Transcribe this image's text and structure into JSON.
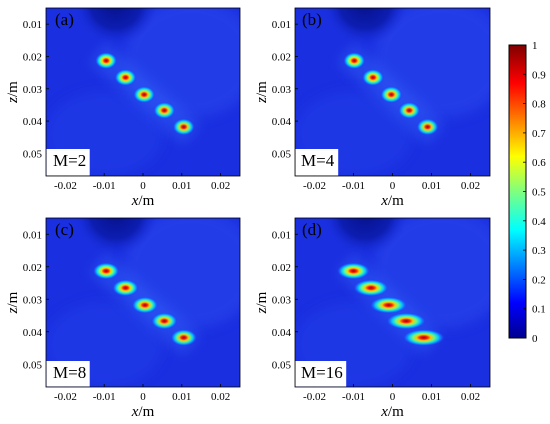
{
  "figure": {
    "colorbar": {
      "min": 0,
      "max": 1,
      "ticks": [
        "0",
        "0.1",
        "0.2",
        "0.3",
        "0.4",
        "0.5",
        "0.6",
        "0.7",
        "0.8",
        "0.9",
        "1"
      ],
      "colormap": "jet"
    },
    "colors": {
      "background_field": "#1a2fe0",
      "shadow": "#071590",
      "hot": "#b00000"
    }
  },
  "chart_data": [
    {
      "type": "heatmap",
      "panel_label": "(a)",
      "annotation": "M=2",
      "xlabel": "x",
      "xunit": "/m",
      "ylabel": "z",
      "yunit": "/m",
      "xlim": [
        -0.025,
        0.025
      ],
      "ylim": [
        0.005,
        0.057
      ],
      "y_reversed": true,
      "xticks": [
        "-0.02",
        "-0.01",
        "0",
        "0.01",
        "0.02"
      ],
      "yticks": [
        "0.01",
        "0.02",
        "0.03",
        "0.04",
        "0.05"
      ],
      "points": [
        {
          "x": -0.0095,
          "z": 0.0213,
          "intensity": 1.0,
          "spread": 1.0
        },
        {
          "x": -0.0045,
          "z": 0.0265,
          "intensity": 0.98,
          "spread": 1.0
        },
        {
          "x": 0.0003,
          "z": 0.0318,
          "intensity": 0.96,
          "spread": 1.0
        },
        {
          "x": 0.0055,
          "z": 0.0367,
          "intensity": 0.94,
          "spread": 1.0
        },
        {
          "x": 0.0105,
          "z": 0.0418,
          "intensity": 0.92,
          "spread": 1.0
        }
      ]
    },
    {
      "type": "heatmap",
      "panel_label": "(b)",
      "annotation": "M=4",
      "xlabel": "x",
      "xunit": "/m",
      "ylabel": "z",
      "yunit": "/m",
      "xlim": [
        -0.025,
        0.025
      ],
      "ylim": [
        0.005,
        0.057
      ],
      "y_reversed": true,
      "xticks": [
        "-0.02",
        "-0.01",
        "0",
        "0.01",
        "0.02"
      ],
      "yticks": [
        "0.01",
        "0.02",
        "0.03",
        "0.04",
        "0.05"
      ],
      "points": [
        {
          "x": -0.0098,
          "z": 0.0213,
          "intensity": 1.0,
          "spread": 1.0
        },
        {
          "x": -0.005,
          "z": 0.0265,
          "intensity": 0.98,
          "spread": 1.0
        },
        {
          "x": -0.0003,
          "z": 0.0318,
          "intensity": 0.96,
          "spread": 1.0
        },
        {
          "x": 0.0043,
          "z": 0.0367,
          "intensity": 0.94,
          "spread": 1.0
        },
        {
          "x": 0.009,
          "z": 0.0418,
          "intensity": 0.92,
          "spread": 1.0
        }
      ]
    },
    {
      "type": "heatmap",
      "panel_label": "(c)",
      "annotation": "M=8",
      "xlabel": "x",
      "xunit": "/m",
      "ylabel": "z",
      "yunit": "/m",
      "xlim": [
        -0.025,
        0.025
      ],
      "ylim": [
        0.005,
        0.057
      ],
      "y_reversed": true,
      "xticks": [
        "-0.02",
        "-0.01",
        "0",
        "0.01",
        "0.02"
      ],
      "yticks": [
        "0.01",
        "0.02",
        "0.03",
        "0.04",
        "0.05"
      ],
      "points": [
        {
          "x": -0.0095,
          "z": 0.0213,
          "intensity": 1.0,
          "spread": 1.2
        },
        {
          "x": -0.0045,
          "z": 0.0265,
          "intensity": 0.98,
          "spread": 1.2
        },
        {
          "x": 0.0005,
          "z": 0.0318,
          "intensity": 0.96,
          "spread": 1.2
        },
        {
          "x": 0.0055,
          "z": 0.0367,
          "intensity": 0.94,
          "spread": 1.2
        },
        {
          "x": 0.0105,
          "z": 0.0418,
          "intensity": 0.92,
          "spread": 1.2
        }
      ]
    },
    {
      "type": "heatmap",
      "panel_label": "(d)",
      "annotation": "M=16",
      "xlabel": "x",
      "xunit": "/m",
      "ylabel": "z",
      "yunit": "/m",
      "xlim": [
        -0.025,
        0.025
      ],
      "ylim": [
        0.005,
        0.057
      ],
      "y_reversed": true,
      "xticks": [
        "-0.02",
        "-0.01",
        "0",
        "0.01",
        "0.02"
      ],
      "yticks": [
        "0.01",
        "0.02",
        "0.03",
        "0.04",
        "0.05"
      ],
      "points": [
        {
          "x": -0.01,
          "z": 0.0213,
          "intensity": 1.0,
          "spread": 1.5
        },
        {
          "x": -0.0055,
          "z": 0.0265,
          "intensity": 0.98,
          "spread": 1.6
        },
        {
          "x": -0.001,
          "z": 0.0318,
          "intensity": 0.97,
          "spread": 1.7
        },
        {
          "x": 0.0035,
          "z": 0.0367,
          "intensity": 0.96,
          "spread": 1.8
        },
        {
          "x": 0.008,
          "z": 0.0418,
          "intensity": 0.95,
          "spread": 1.9
        }
      ]
    }
  ]
}
